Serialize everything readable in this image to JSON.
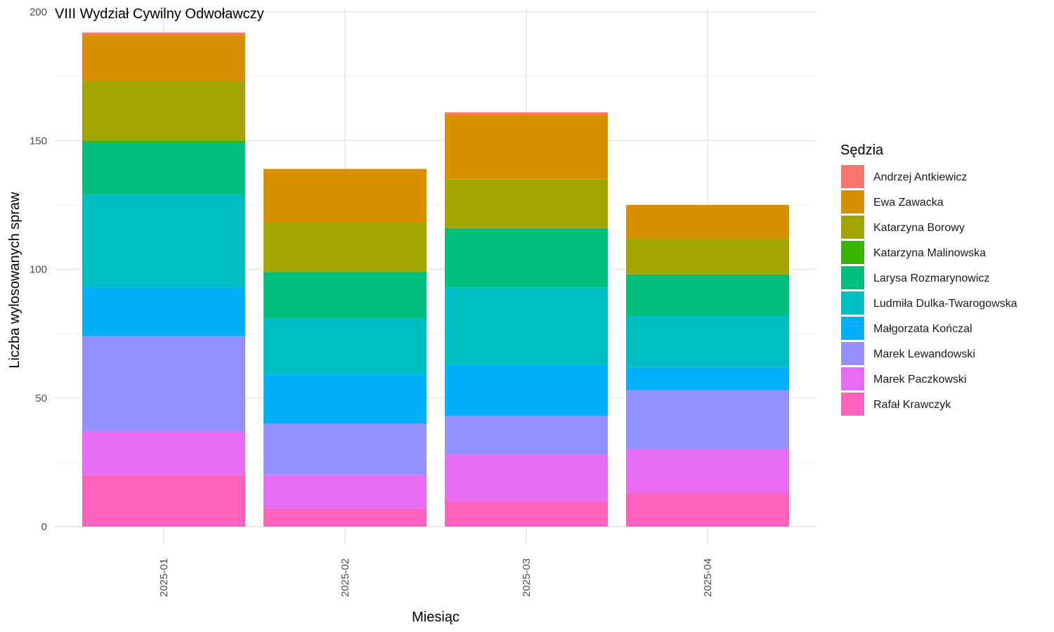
{
  "chart_data": {
    "type": "bar",
    "stacked": true,
    "title": "VIII Wydział Cywilny Odwoławczy",
    "xlabel": "Miesiąc",
    "ylabel": "Liczba wylosowanych spraw",
    "ylim": [
      0,
      200
    ],
    "yticks": [
      "0",
      "50",
      "100",
      "150",
      "200"
    ],
    "grid": true,
    "legend_title": "Sędzia",
    "legend_position": "right",
    "categories": [
      "2025-01",
      "2025-02",
      "2025-03",
      "2025-04"
    ],
    "series": [
      {
        "name": "Andrzej Antkiewicz",
        "color": "#F8766D",
        "values": [
          1,
          0,
          1,
          0
        ]
      },
      {
        "name": "Ewa Zawacka",
        "color": "#D89000",
        "values": [
          18,
          21,
          25,
          13
        ]
      },
      {
        "name": "Katarzyna Borowy",
        "color": "#A3A500",
        "values": [
          23,
          19,
          19,
          14
        ]
      },
      {
        "name": "Katarzyna Malinowska",
        "color": "#39B600",
        "values": [
          1,
          0,
          0,
          0
        ]
      },
      {
        "name": "Larysa Rozmarynowicz",
        "color": "#00BF7D",
        "values": [
          20,
          18,
          23,
          16
        ]
      },
      {
        "name": "Ludmiła Dulka-Twarogowska",
        "color": "#00BFC4",
        "values": [
          36,
          22,
          30,
          20
        ]
      },
      {
        "name": "Małgorzata Kończal",
        "color": "#00B0F6",
        "values": [
          19,
          19,
          20,
          9
        ]
      },
      {
        "name": "Marek Lewandowski",
        "color": "#9590FF",
        "values": [
          37,
          20,
          15,
          23
        ]
      },
      {
        "name": "Marek Paczkowski",
        "color": "#E76BF3",
        "values": [
          17,
          13,
          18,
          17
        ]
      },
      {
        "name": "Rafał Krawczyk",
        "color": "#FF62BC",
        "values": [
          20,
          7,
          10,
          13
        ]
      }
    ]
  }
}
